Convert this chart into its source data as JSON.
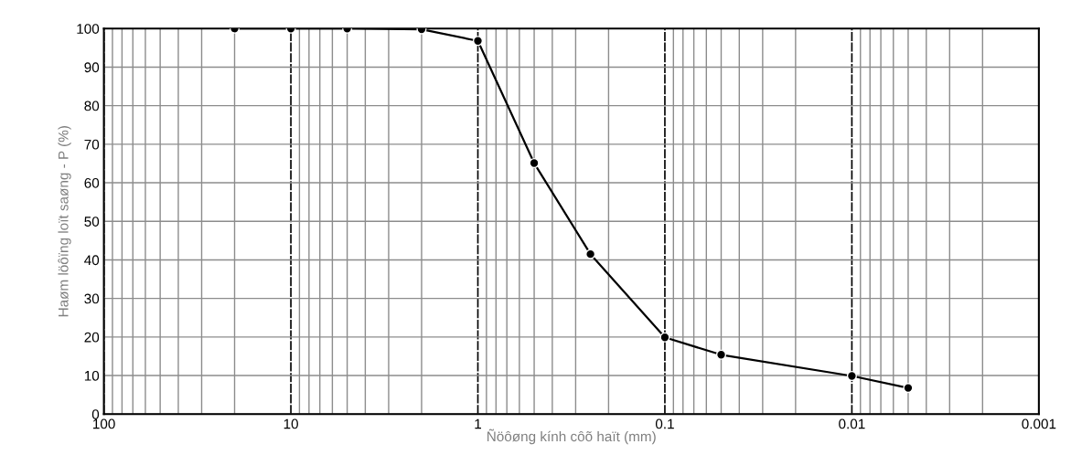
{
  "chart_data": {
    "type": "line",
    "xlabel": "Ñöôøng kính côõ haït (mm)",
    "ylabel": "Haøm löôïng loït saøng - P (%)",
    "log": "x",
    "xlim": [
      100,
      0.001
    ],
    "xticks": [
      100,
      10,
      1,
      0.1,
      0.01,
      0.001
    ],
    "ylim": [
      0,
      100
    ],
    "yticks": [
      0,
      10,
      20,
      30,
      40,
      50,
      60,
      70,
      80,
      90,
      100
    ],
    "grid": true,
    "marker": "circle",
    "line_style": "solid",
    "series": [
      {
        "color": "#000000",
        "x": [
          20,
          10,
          5,
          2,
          1,
          0.5,
          0.25,
          0.1,
          0.05,
          0.01,
          0.005
        ],
        "values": [
          100,
          100,
          100,
          99.8,
          96.8,
          65.1,
          41.5,
          19.9,
          15.4,
          9.9,
          6.8
        ]
      }
    ]
  }
}
